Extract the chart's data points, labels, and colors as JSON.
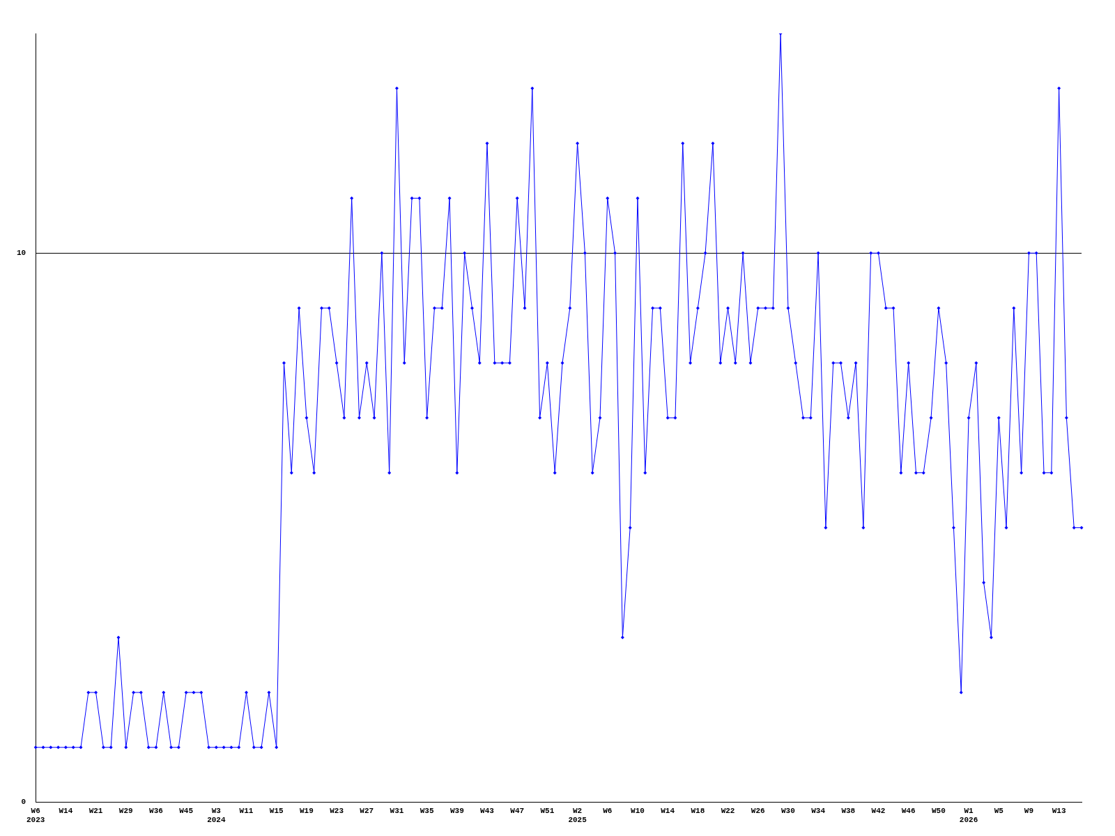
{
  "chart_data": {
    "type": "line",
    "categories": [
      "W6\n2023",
      null,
      null,
      null,
      "W14",
      null,
      null,
      null,
      "W21",
      null,
      null,
      null,
      "W29",
      null,
      null,
      null,
      "W36",
      null,
      null,
      null,
      "W45",
      null,
      null,
      null,
      "W3\n2024",
      null,
      null,
      null,
      "W11",
      null,
      null,
      null,
      "W15",
      null,
      null,
      null,
      "W19",
      null,
      null,
      null,
      "W23",
      null,
      null,
      null,
      "W27",
      null,
      null,
      null,
      "W31",
      null,
      null,
      null,
      "W35",
      null,
      null,
      null,
      "W39",
      null,
      null,
      null,
      "W43",
      null,
      null,
      null,
      "W47",
      null,
      null,
      null,
      "W51",
      null,
      null,
      null,
      "W2\n2025",
      null,
      null,
      null,
      "W6",
      null,
      null,
      null,
      "W10",
      null,
      null,
      null,
      "W14",
      null,
      null,
      null,
      "W18",
      null,
      null,
      null,
      "W22",
      null,
      null,
      null,
      "W26",
      null,
      null,
      null,
      "W30",
      null,
      null,
      null,
      "W34",
      null,
      null,
      null,
      "W38",
      null,
      null,
      null,
      "W42",
      null,
      null,
      null,
      "W46",
      null,
      null,
      null,
      "W50",
      null,
      null,
      null,
      "W1\n2026",
      null,
      null,
      null,
      "W5",
      null,
      null,
      null,
      "W9",
      null,
      null,
      null,
      "W13",
      null,
      null,
      null
    ],
    "series": [
      {
        "color": "#0000ff",
        "values": [
          1,
          1,
          1,
          1,
          1,
          1,
          1,
          2,
          2,
          1,
          1,
          3,
          1,
          2,
          2,
          1,
          1,
          2,
          1,
          1,
          2,
          2,
          2,
          1,
          1,
          1,
          1,
          1,
          2,
          1,
          1,
          2,
          1,
          8,
          6,
          9,
          7,
          6,
          9,
          9,
          8,
          7,
          11,
          7,
          8,
          7,
          10,
          6,
          13,
          8,
          11,
          11,
          7,
          9,
          9,
          11,
          6,
          10,
          9,
          8,
          12,
          8,
          8,
          8,
          11,
          9,
          13,
          7,
          8,
          6,
          8,
          9,
          12,
          10,
          6,
          7,
          11,
          10,
          3,
          5,
          11,
          6,
          9,
          9,
          7,
          7,
          12,
          8,
          9,
          10,
          12,
          8,
          9,
          8,
          10,
          8,
          9,
          9,
          9,
          14,
          9,
          8,
          7,
          7,
          10,
          5,
          8,
          8,
          7,
          8,
          5,
          10,
          10,
          9,
          9,
          6,
          8,
          6,
          6,
          7,
          9,
          8,
          5,
          2,
          7,
          8,
          4,
          3,
          7,
          5,
          9,
          6,
          10,
          10,
          6,
          6,
          13,
          7,
          5,
          5
        ]
      }
    ],
    "ylim": [
      0,
      14
    ],
    "yticks": [
      0,
      10
    ],
    "grid": "y",
    "marker": "diamond",
    "line_style": "solid",
    "legend": false
  }
}
